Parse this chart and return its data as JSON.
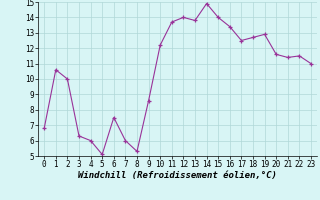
{
  "x": [
    0,
    1,
    2,
    3,
    4,
    5,
    6,
    7,
    8,
    9,
    10,
    11,
    12,
    13,
    14,
    15,
    16,
    17,
    18,
    19,
    20,
    21,
    22,
    23
  ],
  "y": [
    6.8,
    10.6,
    10.0,
    6.3,
    6.0,
    5.1,
    7.5,
    6.0,
    5.3,
    8.6,
    12.2,
    13.7,
    14.0,
    13.8,
    14.9,
    14.0,
    13.4,
    12.5,
    12.7,
    12.9,
    11.6,
    11.4,
    11.5,
    11.0
  ],
  "line_color": "#993399",
  "marker": "+",
  "marker_size": 3,
  "bg_color": "#d8f5f5",
  "grid_color": "#b0d8d8",
  "xlabel": "Windchill (Refroidissement éolien,°C)",
  "xlim_min": -0.5,
  "xlim_max": 23.5,
  "ylim_min": 5,
  "ylim_max": 15,
  "yticks": [
    5,
    6,
    7,
    8,
    9,
    10,
    11,
    12,
    13,
    14,
    15
  ],
  "xticks": [
    0,
    1,
    2,
    3,
    4,
    5,
    6,
    7,
    8,
    9,
    10,
    11,
    12,
    13,
    14,
    15,
    16,
    17,
    18,
    19,
    20,
    21,
    22,
    23
  ],
  "tick_fontsize": 5.5,
  "xlabel_fontsize": 6.5
}
